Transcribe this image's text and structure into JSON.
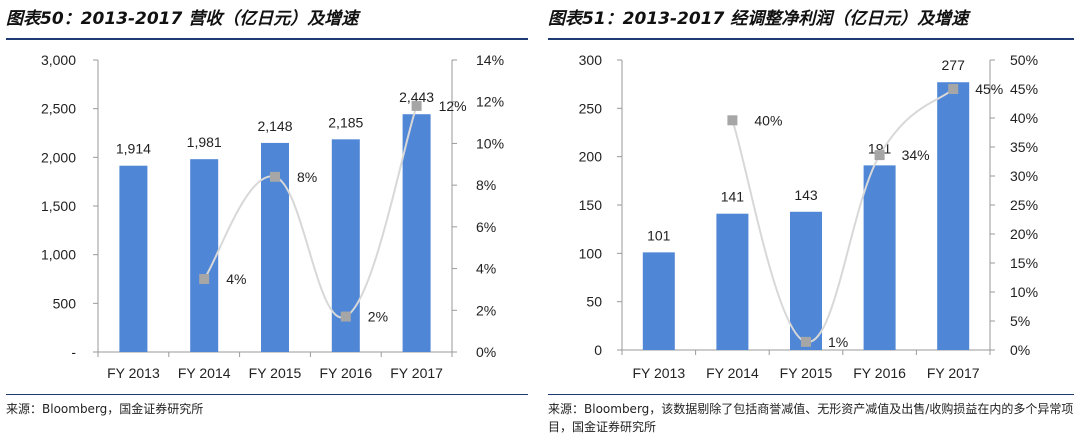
{
  "colors": {
    "bar": "#4f86d6",
    "line": "#d8d8d8",
    "marker": "#a6a6a6",
    "rule": "#1f3b73"
  },
  "left": {
    "title": "图表50：2013-2017 营收（亿日元）及增速",
    "source": "来源：Bloomberg，国金证券研究所",
    "chart_data": {
      "type": "bar+line",
      "categories": [
        "FY 2013",
        "FY 2014",
        "FY 2015",
        "FY 2016",
        "FY 2017"
      ],
      "series": [
        {
          "name": "营收",
          "kind": "bar",
          "axis": "left",
          "values": [
            1914,
            1981,
            2148,
            2185,
            2443
          ],
          "labels": [
            "1,914",
            "1,981",
            "2,148",
            "2,185",
            "2,443"
          ]
        },
        {
          "name": "增速",
          "kind": "line",
          "axis": "right",
          "values": [
            null,
            3.5,
            8.4,
            1.7,
            11.8
          ],
          "labels": [
            "",
            "4%",
            "8%",
            "2%",
            "12%"
          ]
        }
      ],
      "left_axis": {
        "ylim": [
          0,
          3000
        ],
        "ticks": [
          0,
          500,
          1000,
          1500,
          2000,
          2500,
          3000
        ],
        "tick_labels": [
          "-",
          "500",
          "1,000",
          "1,500",
          "2,000",
          "2,500",
          "3,000"
        ]
      },
      "right_axis": {
        "ylim": [
          0,
          14
        ],
        "ticks": [
          0,
          2,
          4,
          6,
          8,
          10,
          12,
          14
        ],
        "tick_labels": [
          "0%",
          "2%",
          "4%",
          "6%",
          "8%",
          "10%",
          "12%",
          "14%"
        ]
      }
    }
  },
  "right": {
    "title": "图表51：2013-2017 经调整净利润（亿日元）及增速",
    "source": "来源：Bloomberg，该数据剔除了包括商誉减值、无形资产减值及出售/收购损益在内的多个异常项目，国金证券研究所",
    "chart_data": {
      "type": "bar+line",
      "categories": [
        "FY 2013",
        "FY 2014",
        "FY 2015",
        "FY 2016",
        "FY 2017"
      ],
      "series": [
        {
          "name": "经调整净利润",
          "kind": "bar",
          "axis": "left",
          "values": [
            101,
            141,
            143,
            191,
            277
          ],
          "labels": [
            "101",
            "141",
            "143",
            "191",
            "277"
          ]
        },
        {
          "name": "增速",
          "kind": "line",
          "axis": "right",
          "values": [
            null,
            39.6,
            1.4,
            33.6,
            45.0
          ],
          "labels": [
            "",
            "40%",
            "1%",
            "34%",
            "45%"
          ]
        }
      ],
      "left_axis": {
        "ylim": [
          0,
          300
        ],
        "ticks": [
          0,
          50,
          100,
          150,
          200,
          250,
          300
        ],
        "tick_labels": [
          "0",
          "50",
          "100",
          "150",
          "200",
          "250",
          "300"
        ]
      },
      "right_axis": {
        "ylim": [
          0,
          50
        ],
        "ticks": [
          0,
          5,
          10,
          15,
          20,
          25,
          30,
          35,
          40,
          45,
          50
        ],
        "tick_labels": [
          "0%",
          "5%",
          "10%",
          "15%",
          "20%",
          "25%",
          "30%",
          "35%",
          "40%",
          "45%",
          "50%"
        ]
      }
    }
  }
}
